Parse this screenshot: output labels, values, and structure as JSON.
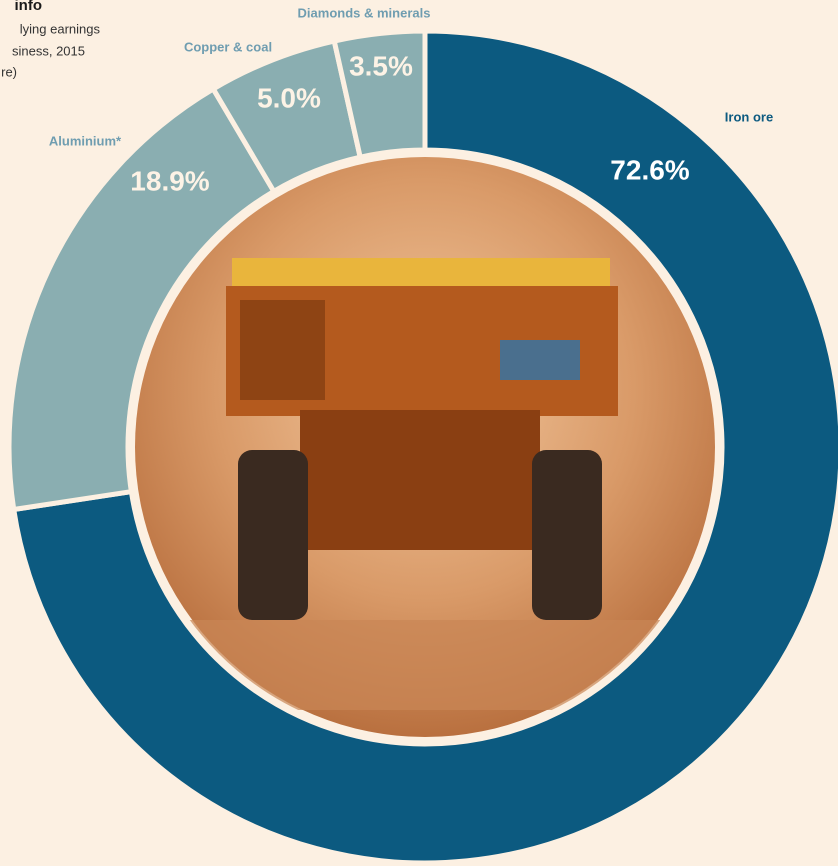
{
  "chart_data": {
    "type": "pie",
    "title": "info",
    "subtitle": [
      "lying earnings",
      "siness, 2015",
      "re)"
    ],
    "categories": [
      "Iron ore",
      "Aluminium*",
      "Copper & coal",
      "Diamonds & minerals"
    ],
    "values": [
      72.6,
      18.9,
      5.0,
      3.5
    ],
    "value_labels": [
      "72.6%",
      "18.9%",
      "5.0%",
      "3.5%"
    ],
    "colors": [
      "#0c5a80",
      "#8aaeb1",
      "#8aaeb1",
      "#8aaeb1"
    ]
  }
}
